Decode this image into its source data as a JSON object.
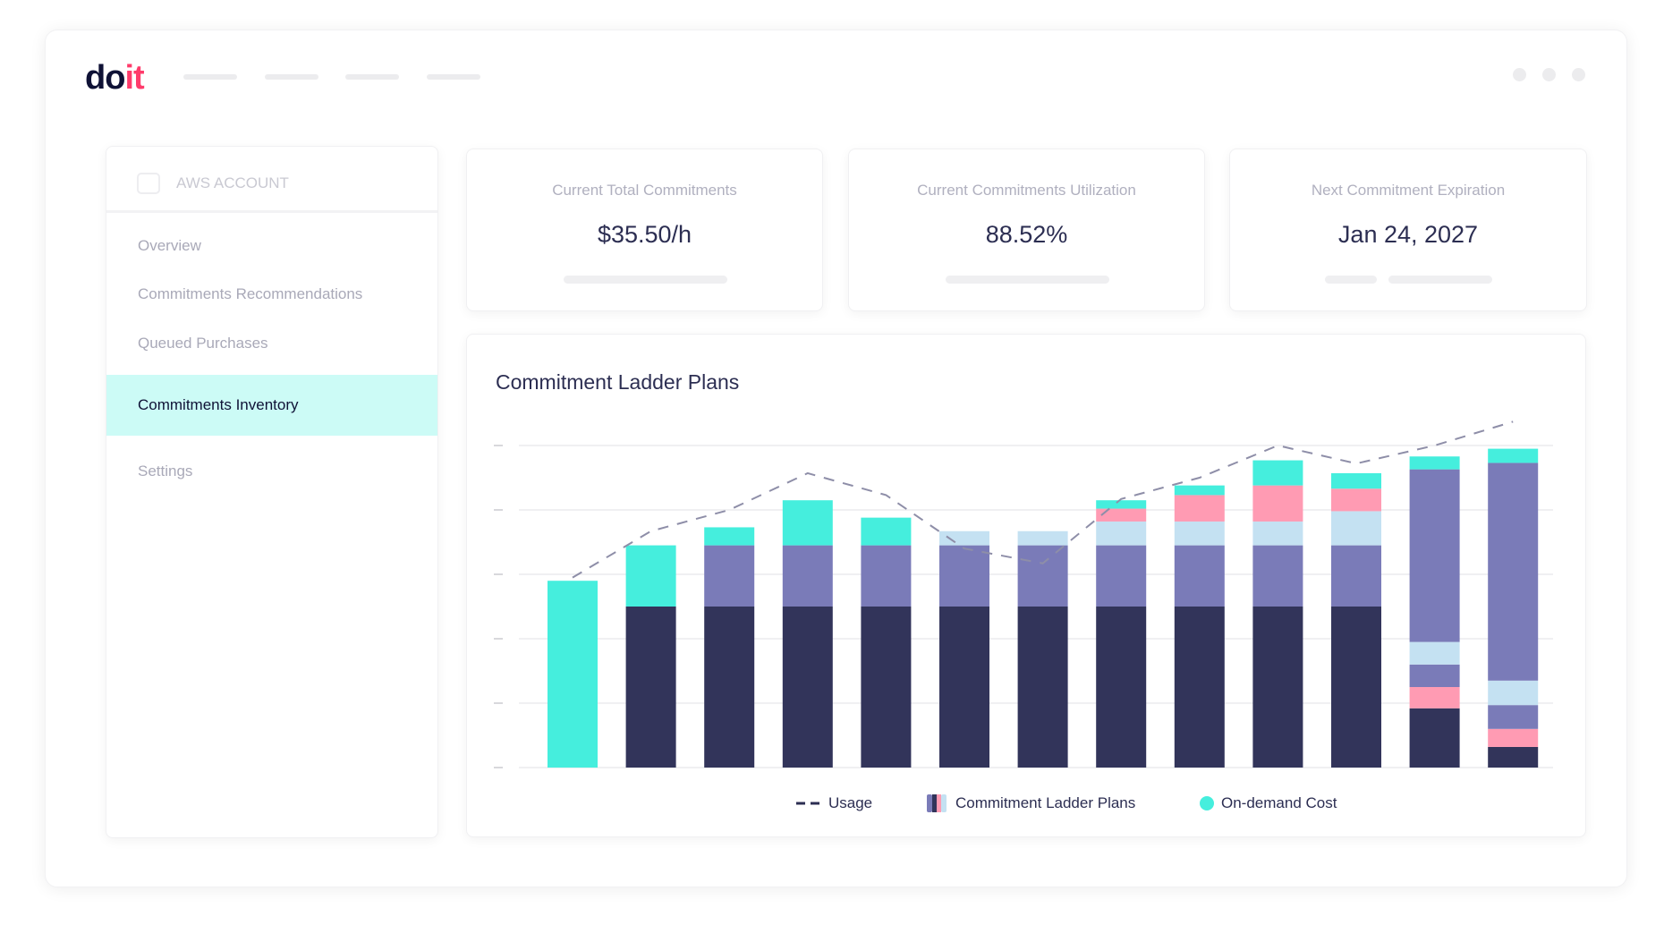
{
  "brand": {
    "logo_text_a": "do",
    "logo_text_b": "it"
  },
  "sidebar": {
    "account_label": "AWS ACCOUNT",
    "items": [
      {
        "label": "Overview"
      },
      {
        "label": "Commitments Recommendations"
      },
      {
        "label": "Queued Purchases"
      },
      {
        "label": "Commitments Inventory",
        "active": true
      },
      {
        "label": "Settings"
      }
    ]
  },
  "stats": [
    {
      "label": "Current Total Commitments",
      "value": "$35.50/h"
    },
    {
      "label": "Current Commitments Utilization",
      "value": "88.52%"
    },
    {
      "label": "Next Commitment Expiration",
      "value": "Jan 24, 2027"
    }
  ],
  "colors": {
    "dark": "#32345a",
    "purple": "#7a7bb8",
    "light_blue": "#c4e1f2",
    "pink": "#ff9bb3",
    "teal": "#45eedd",
    "active_bg": "#ccfbf6"
  },
  "chart_data": {
    "type": "bar",
    "title": "Commitment Ladder Plans",
    "stacked": true,
    "ylim": [
      0,
      5
    ],
    "grid": true,
    "legend_position": "bottom",
    "legend": [
      {
        "label": "Usage",
        "icon": "dashed-line"
      },
      {
        "label": "Commitment Ladder Plans",
        "icon": "multi-color-bar"
      },
      {
        "label": "On-demand Cost",
        "icon": "teal-dot"
      }
    ],
    "bars": [
      [
        [
          "teal",
          2.9
        ]
      ],
      [
        [
          "dark",
          2.5
        ],
        [
          "teal",
          0.95
        ]
      ],
      [
        [
          "dark",
          2.5
        ],
        [
          "purple",
          0.95
        ],
        [
          "teal",
          0.28
        ]
      ],
      [
        [
          "dark",
          2.5
        ],
        [
          "purple",
          0.95
        ],
        [
          "teal",
          0.7
        ]
      ],
      [
        [
          "dark",
          2.5
        ],
        [
          "purple",
          0.95
        ],
        [
          "teal",
          0.43
        ]
      ],
      [
        [
          "dark",
          2.5
        ],
        [
          "purple",
          0.95
        ],
        [
          "light_blue",
          0.22
        ]
      ],
      [
        [
          "dark",
          2.5
        ],
        [
          "purple",
          0.95
        ],
        [
          "light_blue",
          0.22
        ]
      ],
      [
        [
          "dark",
          2.5
        ],
        [
          "purple",
          0.95
        ],
        [
          "light_blue",
          0.37
        ],
        [
          "pink",
          0.2
        ],
        [
          "teal",
          0.13
        ]
      ],
      [
        [
          "dark",
          2.5
        ],
        [
          "purple",
          0.95
        ],
        [
          "light_blue",
          0.37
        ],
        [
          "pink",
          0.41
        ],
        [
          "teal",
          0.15
        ]
      ],
      [
        [
          "dark",
          2.5
        ],
        [
          "purple",
          0.95
        ],
        [
          "light_blue",
          0.37
        ],
        [
          "pink",
          0.56
        ],
        [
          "teal",
          0.39
        ]
      ],
      [
        [
          "dark",
          2.5
        ],
        [
          "purple",
          0.95
        ],
        [
          "light_blue",
          0.53
        ],
        [
          "pink",
          0.35
        ],
        [
          "teal",
          0.24
        ]
      ],
      [
        [
          "dark",
          0.92
        ],
        [
          "pink",
          0.33
        ],
        [
          "purple",
          0.35
        ],
        [
          "light_blue",
          0.35
        ],
        [
          "purple",
          2.68
        ],
        [
          "teal",
          0.2
        ]
      ],
      [
        [
          "dark",
          0.32
        ],
        [
          "pink",
          0.28
        ],
        [
          "purple",
          0.37
        ],
        [
          "light_blue",
          0.38
        ],
        [
          "purple",
          3.38
        ],
        [
          "teal",
          0.22
        ]
      ]
    ],
    "usage": [
      2.95,
      3.67,
      4.0,
      4.57,
      4.23,
      3.4,
      3.17,
      4.17,
      4.5,
      5.0,
      4.72,
      5.0,
      5.37
    ]
  }
}
